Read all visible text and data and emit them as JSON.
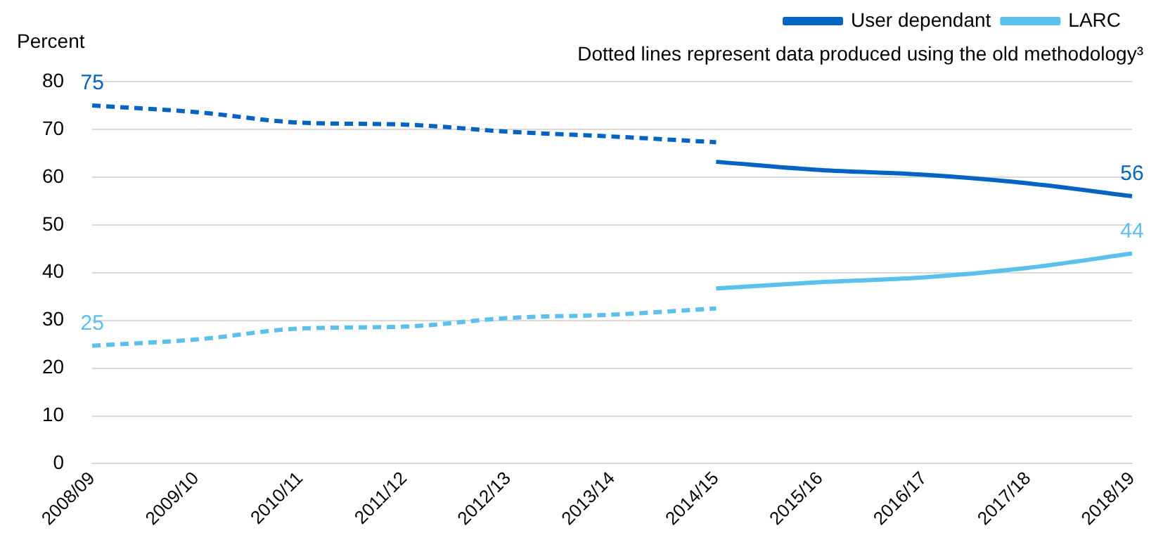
{
  "chart_data": {
    "type": "line",
    "ylabel": "Percent",
    "annotations": [
      "Dotted lines represent data produced using the old methodology³"
    ],
    "categories": [
      "2008/09",
      "2009/10",
      "2010/11",
      "2011/12",
      "2012/13",
      "2013/14",
      "2014/15",
      "2015/16",
      "2016/17",
      "2017/18",
      "2018/19"
    ],
    "series": [
      {
        "name": "User dependant",
        "color": "#0563c1",
        "line_style": "solid",
        "values": [
          null,
          null,
          null,
          null,
          null,
          null,
          63.2,
          61.5,
          60.5,
          58.7,
          56
        ],
        "value_labels": [
          null,
          null,
          null,
          null,
          null,
          null,
          null,
          null,
          null,
          null,
          "56"
        ]
      },
      {
        "name": "LARC",
        "color": "#5bc0eb",
        "line_style": "solid",
        "values": [
          null,
          null,
          null,
          null,
          null,
          null,
          36.7,
          38,
          39,
          41,
          44
        ],
        "value_labels": [
          null,
          null,
          null,
          null,
          null,
          null,
          null,
          null,
          null,
          null,
          "44"
        ]
      },
      {
        "color": "#0563c1",
        "line_style": "dashed",
        "values": [
          75,
          73.6,
          71.4,
          71,
          69.5,
          68.5,
          67.3,
          null,
          null,
          null,
          null
        ],
        "value_labels": [
          "75",
          null,
          null,
          null,
          null,
          null,
          null,
          null,
          null,
          null,
          null
        ]
      },
      {
        "color": "#5bc0eb",
        "line_style": "dashed",
        "values": [
          24.7,
          26,
          28.3,
          28.7,
          30.5,
          31.2,
          32.5,
          null,
          null,
          null,
          null
        ],
        "value_labels": [
          "25",
          null,
          null,
          null,
          null,
          null,
          null,
          null,
          null,
          null,
          null
        ]
      }
    ],
    "ylim": [
      0,
      80
    ],
    "yticks": [
      0,
      10,
      20,
      30,
      40,
      50,
      60,
      70,
      80
    ],
    "grid": "y",
    "legend": "top right",
    "marker": "none"
  }
}
